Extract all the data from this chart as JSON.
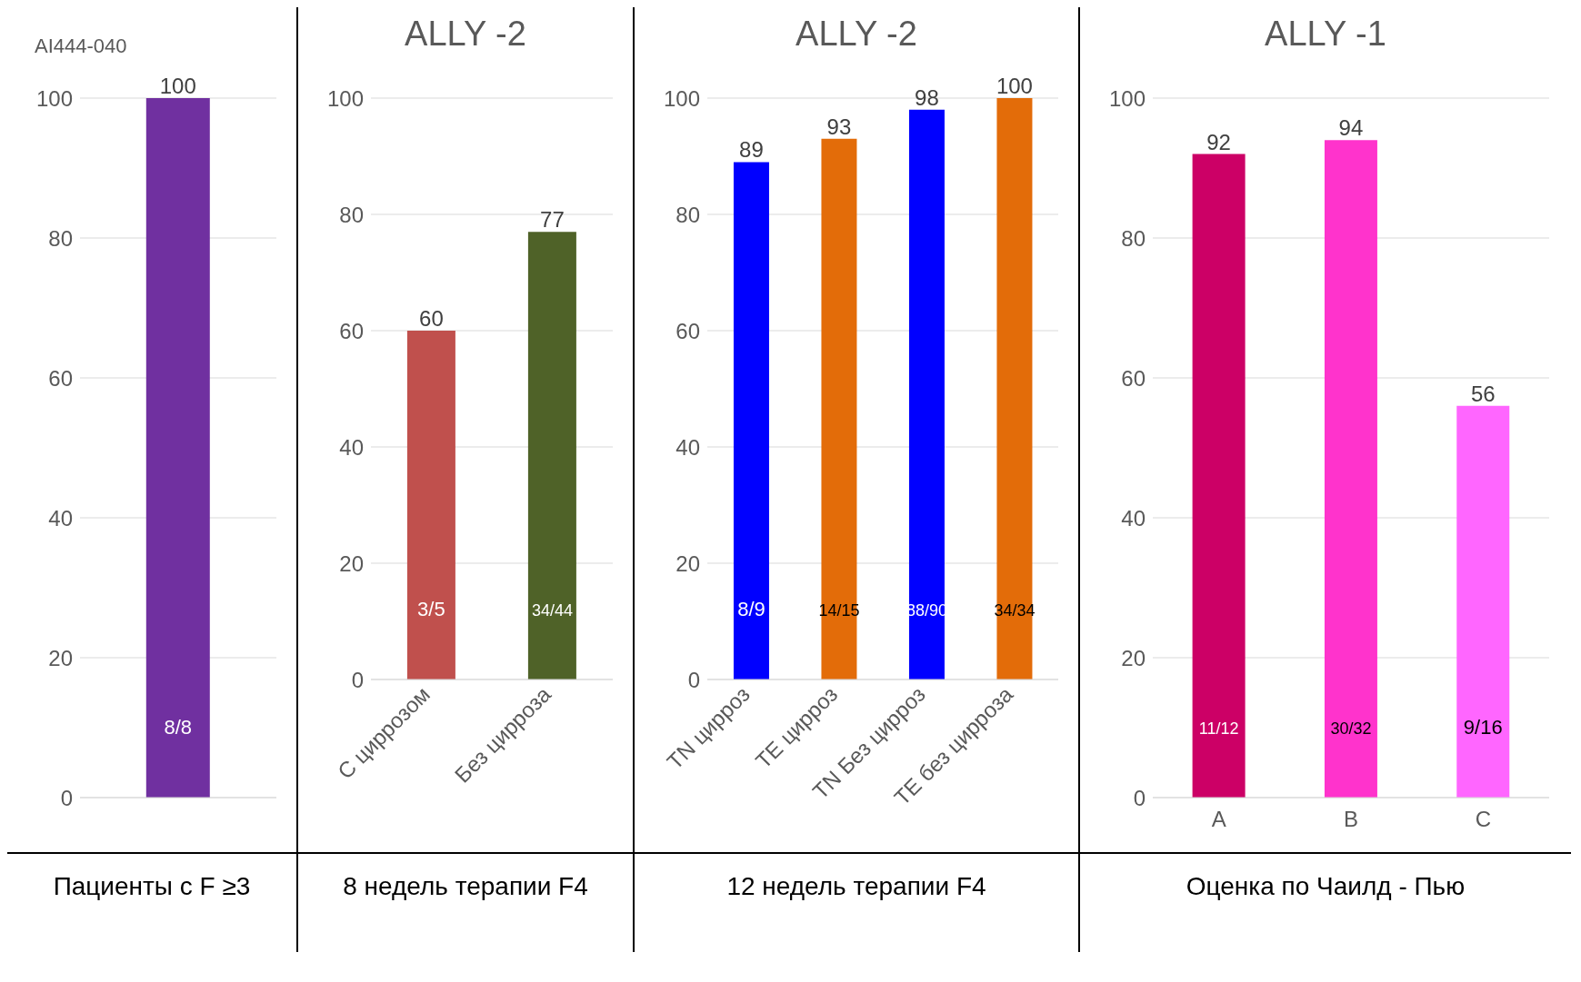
{
  "chart_data": [
    {
      "type": "bar",
      "title": "AI444-040",
      "xlabel": "Пациенты с F ≥3",
      "categories": [
        null
      ],
      "values": [
        100
      ],
      "colors": [
        "#7030a0"
      ],
      "ylim": [
        0,
        100
      ],
      "yticks": [
        0,
        20,
        40,
        60,
        80,
        100
      ],
      "grid": "y",
      "data_labels": true,
      "annotations": [
        "8/8"
      ]
    },
    {
      "type": "bar",
      "title": "ALLY -2",
      "xlabel": "8 недель терапии F4",
      "categories": [
        "С циррозом",
        "Без цирроза"
      ],
      "values": [
        60,
        77
      ],
      "colors": [
        "#c0504d",
        "#4f6228"
      ],
      "ylim": [
        0,
        100
      ],
      "yticks": [
        0,
        20,
        40,
        60,
        80,
        100
      ],
      "grid": "y",
      "data_labels": true,
      "annotations": [
        "3/5",
        "34/44"
      ]
    },
    {
      "type": "bar",
      "title": "ALLY -2",
      "xlabel": "12 недель терапии F4",
      "categories": [
        "TN цирроз",
        "TE цирроз",
        "TN Без цирроз",
        "TE без цирроза"
      ],
      "values": [
        89,
        93,
        98,
        100
      ],
      "colors": [
        "#0000ff",
        "#e36c09",
        "#0000ff",
        "#e36c09"
      ],
      "ylim": [
        0,
        100
      ],
      "yticks": [
        0,
        20,
        40,
        60,
        80,
        100
      ],
      "grid": "y",
      "data_labels": true,
      "annotations": [
        "8/9",
        "14/15",
        "88/90",
        "34/34"
      ]
    },
    {
      "type": "bar",
      "title": "ALLY -1",
      "xlabel": "Оценка по Чаилд - Пью",
      "categories": [
        "A",
        "B",
        "C"
      ],
      "values": [
        92,
        94,
        56
      ],
      "colors": [
        "#cc0066",
        "#ff33cc",
        "#ff66ff"
      ],
      "ylim": [
        0,
        100
      ],
      "yticks": [
        0,
        20,
        40,
        60,
        80,
        100
      ],
      "grid": "y",
      "data_labels": true,
      "annotations": [
        "11/12",
        "30/32",
        "9/16"
      ]
    }
  ]
}
